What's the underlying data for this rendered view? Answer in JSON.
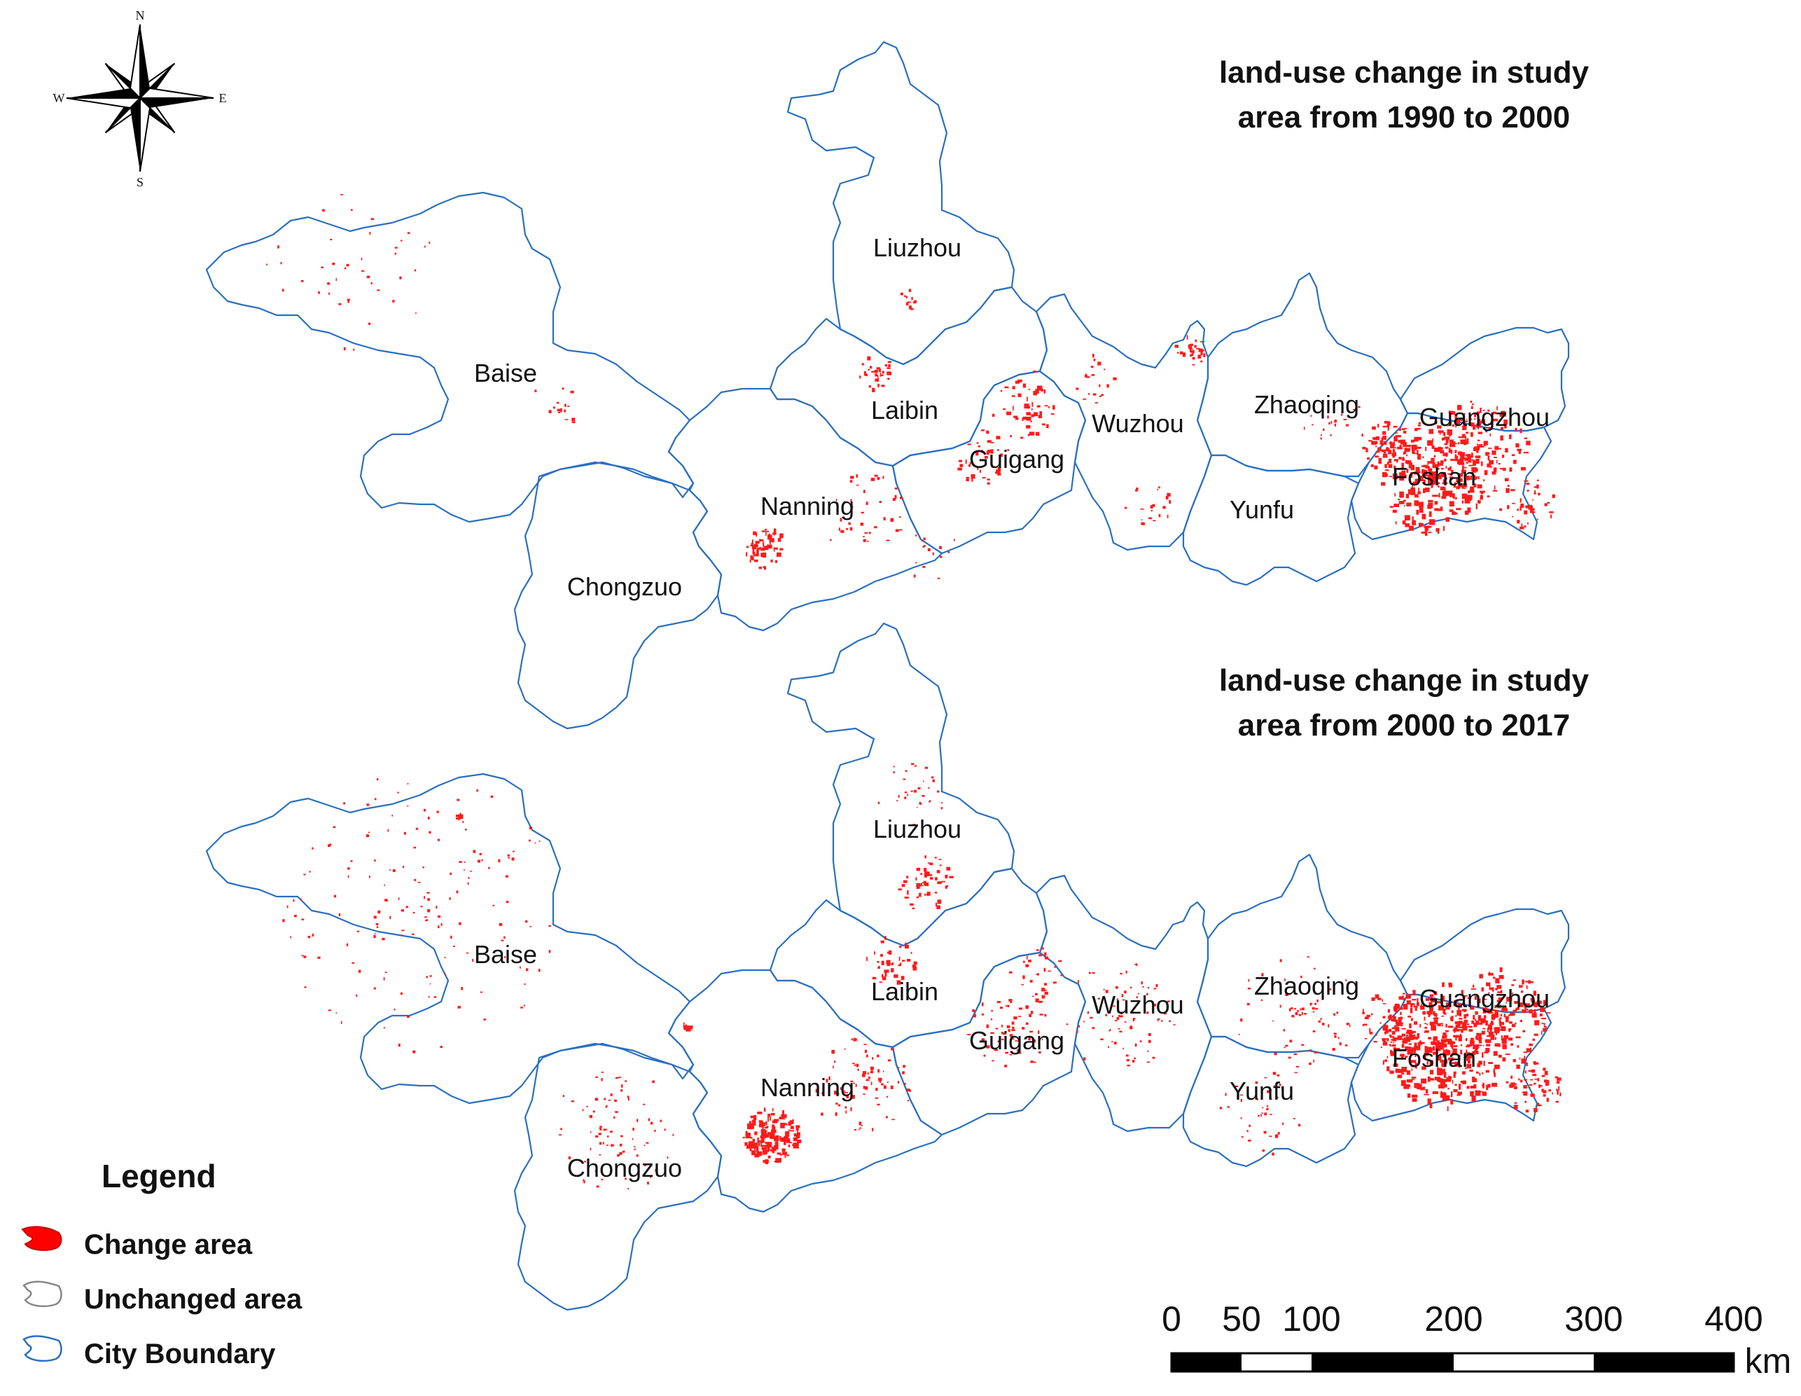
{
  "maps": [
    {
      "title_lines": [
        "land-use change in study",
        "area from 1990 to 2000"
      ],
      "cities": [
        "Liuzhou",
        "Baise",
        "Laibin",
        "Guigang",
        "Wuzhou",
        "Zhaoqing",
        "Guangzhou",
        "Foshan",
        "Nanning",
        "Yunfu",
        "Chongzuo"
      ]
    },
    {
      "title_lines": [
        "land-use change in study",
        "area from 2000 to 2017"
      ],
      "cities": [
        "Liuzhou",
        "Baise",
        "Laibin",
        "Guigang",
        "Wuzhou",
        "Zhaoqing",
        "Guangzhou",
        "Foshan",
        "Nanning",
        "Yunfu",
        "Chongzuo"
      ]
    }
  ],
  "compass": {
    "n": "N",
    "s": "S",
    "e": "E",
    "w": "W"
  },
  "legend": {
    "title": "Legend",
    "items": [
      {
        "label": "Change area",
        "symbol": "change",
        "color": "#ff0000"
      },
      {
        "label": "Unchanged area",
        "symbol": "unchanged",
        "color": "#999999"
      },
      {
        "label": "City Boundary",
        "symbol": "boundary",
        "color": "#2a6fc0"
      }
    ]
  },
  "scale_bar": {
    "ticks": [
      "0",
      "50",
      "100",
      "200",
      "300",
      "400"
    ],
    "unit": "km"
  },
  "colors": {
    "change": "#ff0000",
    "boundary": "#2a6fc0",
    "background": "#ffffff"
  }
}
